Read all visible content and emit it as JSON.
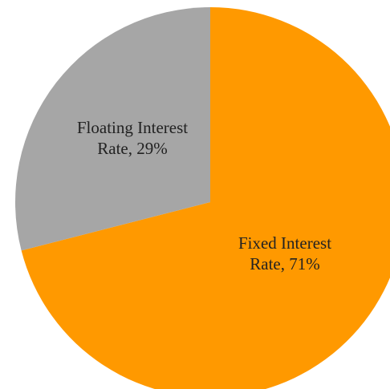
{
  "chart_data": {
    "type": "pie",
    "title": "",
    "categories": [
      "Fixed Interest Rate",
      "Floating Interest Rate"
    ],
    "values": [
      71,
      29
    ],
    "unit": "%",
    "colors": [
      "#ff9900",
      "#a6a6a6"
    ],
    "start_angle_deg": 0,
    "direction": "clockwise",
    "legend": "none",
    "data_labels": [
      {
        "lines": [
          "Fixed Interest",
          "Rate, 71%"
        ]
      },
      {
        "lines": [
          "Floating Interest",
          "Rate, 29%"
        ]
      }
    ]
  }
}
